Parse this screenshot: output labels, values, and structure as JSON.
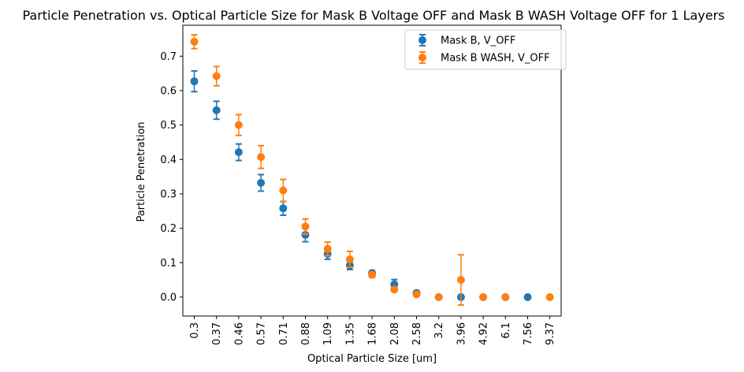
{
  "chart_data": {
    "type": "scatter",
    "title": "Particle Penetration vs. Optical Particle Size for Mask B Voltage OFF and Mask B WASH Voltage OFF for 1 Layers",
    "xlabel": "Optical Particle Size [um]",
    "ylabel": "Particle Penetration",
    "categories": [
      "0.3",
      "0.37",
      "0.46",
      "0.57",
      "0.71",
      "0.88",
      "1.09",
      "1.35",
      "1.68",
      "2.08",
      "2.58",
      "3.2",
      "3.96",
      "4.92",
      "6.1",
      "7.56",
      "9.37"
    ],
    "ylim": [
      -0.055,
      0.79
    ],
    "yticks": [
      0.0,
      0.1,
      0.2,
      0.3,
      0.4,
      0.5,
      0.6,
      0.7
    ],
    "ytick_labels": [
      "0.0",
      "0.1",
      "0.2",
      "0.3",
      "0.4",
      "0.5",
      "0.6",
      "0.7"
    ],
    "grid": false,
    "legend_position": "top-right",
    "series": [
      {
        "name": "Mask B, V_OFF",
        "color": "#1f77b4",
        "values": [
          0.627,
          0.543,
          0.421,
          0.332,
          0.258,
          0.181,
          0.125,
          0.092,
          0.07,
          0.037,
          0.012,
          0.0,
          0.0,
          0.0,
          0.0,
          0.0,
          null
        ],
        "errors": [
          0.03,
          0.026,
          0.024,
          0.024,
          0.02,
          0.02,
          0.015,
          0.012,
          0.007,
          0.014,
          0.005,
          0.0,
          0.0,
          0.0,
          0.0,
          0.0,
          null
        ]
      },
      {
        "name": "Mask B WASH, V_OFF",
        "color": "#ff7f0e",
        "values": [
          0.742,
          0.642,
          0.5,
          0.407,
          0.31,
          0.205,
          0.14,
          0.11,
          0.065,
          0.022,
          0.008,
          0.0,
          0.05,
          0.0,
          0.0,
          null,
          0.0
        ],
        "errors": [
          0.02,
          0.028,
          0.03,
          0.033,
          0.032,
          0.022,
          0.02,
          0.023,
          0.008,
          0.006,
          0.004,
          0.0,
          0.073,
          0.0,
          0.0,
          null,
          0.0
        ]
      }
    ]
  }
}
